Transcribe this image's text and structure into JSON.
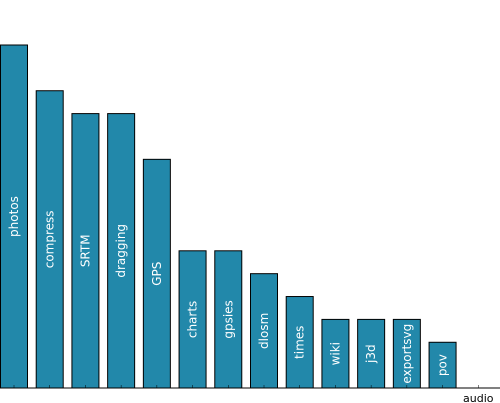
{
  "chart_data": {
    "type": "bar",
    "orientation": "vertical",
    "label_placement": "inside-bar-rotated",
    "categories": [
      "photos",
      "compress",
      "SRTM",
      "dragging",
      "GPS",
      "charts",
      "gpsies",
      "dlosm",
      "times",
      "wiki",
      "j3d",
      "exportsvg",
      "pov",
      "audio"
    ],
    "values": [
      15,
      13,
      12,
      12,
      10,
      6,
      6,
      5,
      4,
      3,
      3,
      3,
      2,
      0
    ],
    "ylim": [
      0,
      15
    ],
    "title": "",
    "xlabel": "",
    "ylabel": "",
    "grid": false,
    "bar_color": "#2288aa",
    "bar_edge_color": "#000000",
    "label_color": "#ffffff"
  }
}
